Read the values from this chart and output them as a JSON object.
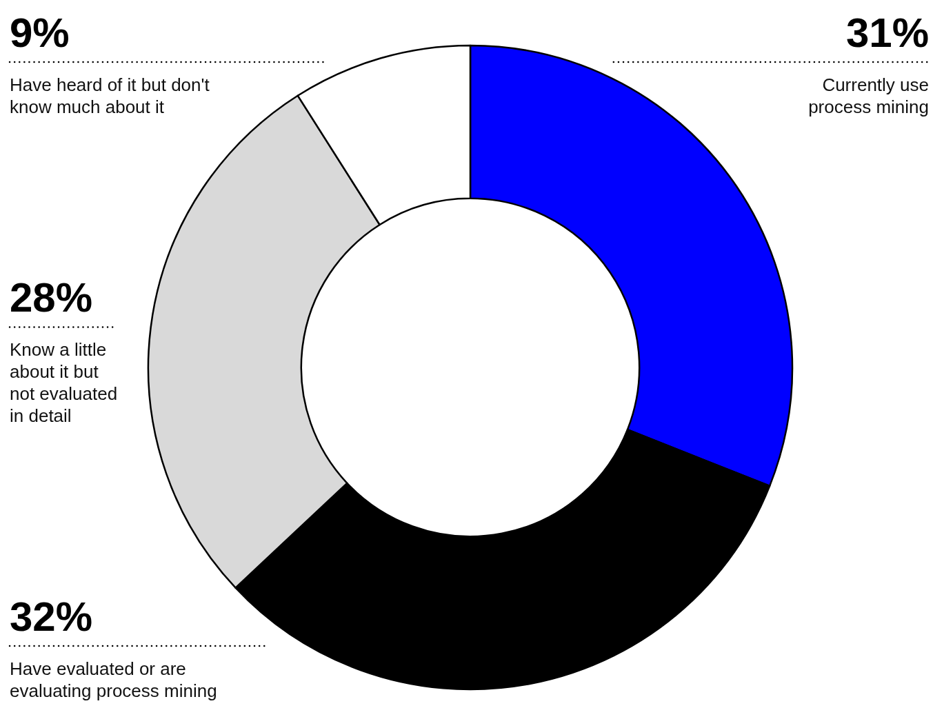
{
  "chart_data": {
    "type": "donut",
    "categories": [
      "Currently use process mining",
      "Have evaluated or are evaluating process mining",
      "Know a little about it but not evaluated in detail",
      "Have heard of it but don't know much about it"
    ],
    "values": [
      31,
      32,
      28,
      9
    ],
    "colors": [
      "#0000ff",
      "#000000",
      "#d9d9d9",
      "#ffffff"
    ],
    "value_labels": [
      "31%",
      "32%",
      "28%",
      "9%"
    ]
  }
}
